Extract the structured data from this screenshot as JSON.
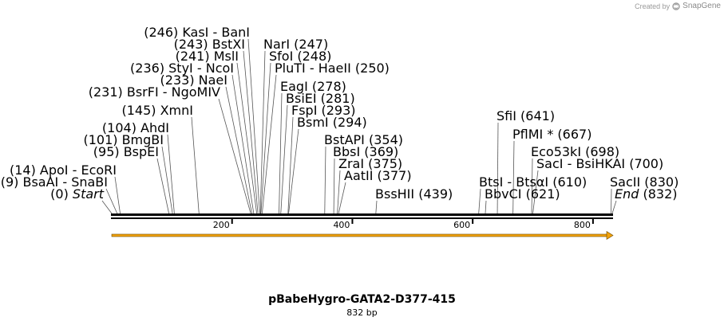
{
  "credit": {
    "prefix": "Created by",
    "brand": "SnapGene",
    "logo_icon": "snapgene-logo-icon"
  },
  "sequence": {
    "name": "pBabeHygro-GATA2-D377-415",
    "length_label": "832 bp",
    "length": 832
  },
  "axis": {
    "ticks": [
      200,
      400,
      600,
      800
    ]
  },
  "feature": {
    "name": "orange-arrow-feature",
    "color": "#f2a20c",
    "start": 0,
    "end": 832
  },
  "labels": [
    {
      "text": "(246) ",
      "pos": 246,
      "names": [
        "KasI",
        "BanI"
      ]
    },
    {
      "text": "(243) ",
      "pos": 243,
      "names": [
        "BstXI"
      ]
    },
    {
      "text": "(241) ",
      "pos": 241,
      "names": [
        "MslI"
      ]
    },
    {
      "text": "(236) ",
      "pos": 236,
      "names": [
        "StyI",
        "NcoI"
      ]
    },
    {
      "text": "(233) ",
      "pos": 233,
      "names": [
        "NaeI"
      ]
    },
    {
      "text": "(231) ",
      "pos": 231,
      "names": [
        "BsrFI",
        "NgoMIV"
      ]
    },
    {
      "text": "(145) ",
      "pos": 145,
      "names": [
        "XmnI"
      ]
    },
    {
      "text": "(104) ",
      "pos": 104,
      "names": [
        "AhdI"
      ]
    },
    {
      "text": "(101) ",
      "pos": 101,
      "names": [
        "BmgBI"
      ]
    },
    {
      "text": "(95) ",
      "pos": 95,
      "names": [
        "BspEI"
      ]
    },
    {
      "text": "(14) ",
      "pos": 14,
      "names": [
        "ApoI",
        "EcoRI"
      ]
    },
    {
      "text": "(9) ",
      "pos": 9,
      "names": [
        "BsaAI",
        "SnaBI"
      ]
    },
    {
      "text": "(0) ",
      "pos": 0,
      "names": [
        "Start"
      ]
    },
    {
      "text": "(247)",
      "pos": 247,
      "names": [
        "NarI"
      ]
    },
    {
      "text": "(248)",
      "pos": 248,
      "names": [
        "SfoI"
      ]
    },
    {
      "text": "(250)",
      "pos": 250,
      "names": [
        "PluTI",
        "HaeII"
      ]
    },
    {
      "text": "(278)",
      "pos": 278,
      "names": [
        "EagI"
      ]
    },
    {
      "text": "(281)",
      "pos": 281,
      "names": [
        "BsiEI"
      ]
    },
    {
      "text": "(293)",
      "pos": 293,
      "names": [
        "FspI"
      ]
    },
    {
      "text": "(294)",
      "pos": 294,
      "names": [
        "BsmI"
      ]
    },
    {
      "text": "(354)",
      "pos": 354,
      "names": [
        "BstAPI"
      ]
    },
    {
      "text": "(369)",
      "pos": 369,
      "names": [
        "BbsI"
      ]
    },
    {
      "text": "(375)",
      "pos": 375,
      "names": [
        "ZraI"
      ]
    },
    {
      "text": "(377)",
      "pos": 377,
      "names": [
        "AatII"
      ]
    },
    {
      "text": "(439)",
      "pos": 439,
      "names": [
        "BssHII"
      ]
    },
    {
      "text": "(641)",
      "pos": 641,
      "names": [
        "SfiI"
      ]
    },
    {
      "text": "(667)",
      "pos": 667,
      "names": [
        "PflMI *"
      ]
    },
    {
      "text": "(698)",
      "pos": 698,
      "names": [
        "Eco53kI"
      ]
    },
    {
      "text": "(700)",
      "pos": 700,
      "names": [
        "SacI",
        "BsiHKAI"
      ]
    },
    {
      "text": "(610)",
      "pos": 610,
      "names": [
        "BtsI",
        "BtsαI"
      ]
    },
    {
      "text": "(621)",
      "pos": 621,
      "names": [
        "BbvCI"
      ]
    },
    {
      "text": "(830)",
      "pos": 830,
      "names": [
        "SacII"
      ]
    },
    {
      "text": "(832)",
      "pos": 832,
      "names": [
        "End"
      ]
    }
  ]
}
